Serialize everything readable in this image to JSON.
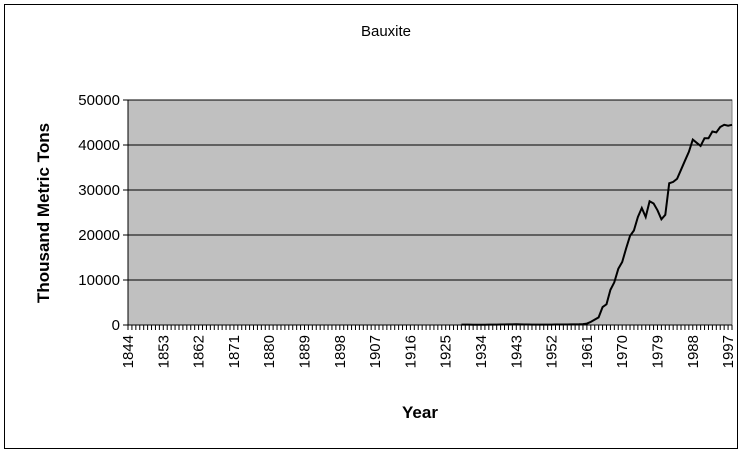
{
  "chart_data": {
    "type": "line",
    "title": "Bauxite",
    "xlabel": "Year",
    "ylabel": "Thousand Metric Tons",
    "xlim": [
      1844,
      1998
    ],
    "ylim": [
      0,
      50000
    ],
    "yticks": [
      "0",
      "10000",
      "20000",
      "30000",
      "40000",
      "50000"
    ],
    "xticks": [
      "1844",
      "1853",
      "1862",
      "1871",
      "1880",
      "1889",
      "1898",
      "1907",
      "1916",
      "1925",
      "1934",
      "1943",
      "1952",
      "1961",
      "1970",
      "1979",
      "1988",
      "1997"
    ],
    "grid": "horizontal",
    "legend": "none",
    "colors": {
      "plot_area": "#c0c0c0",
      "line": "#000000",
      "grid": "#000000"
    },
    "series": [
      {
        "x": [
          1929,
          1930,
          1931,
          1932,
          1933,
          1934,
          1935,
          1936,
          1937,
          1938,
          1939,
          1940,
          1941,
          1942,
          1943,
          1944,
          1945,
          1946,
          1947,
          1948,
          1949,
          1950,
          1951,
          1952,
          1953,
          1954,
          1955,
          1956,
          1957,
          1958,
          1959,
          1960,
          1961,
          1962,
          1963,
          1964,
          1965,
          1966,
          1967,
          1968,
          1969,
          1970,
          1971,
          1972,
          1973,
          1974,
          1975,
          1976,
          1977,
          1978,
          1979,
          1980,
          1981,
          1982,
          1983,
          1984,
          1985,
          1986,
          1987,
          1988,
          1989,
          1990,
          1991,
          1992,
          1993,
          1994,
          1995,
          1996,
          1997,
          1998
        ],
        "values": [
          100,
          100,
          80,
          60,
          50,
          60,
          70,
          80,
          90,
          100,
          110,
          120,
          130,
          140,
          150,
          140,
          120,
          110,
          100,
          100,
          90,
          90,
          100,
          100,
          110,
          110,
          120,
          120,
          130,
          130,
          150,
          200,
          300,
          700,
          1200,
          1700,
          4000,
          4600,
          7800,
          9500,
          12500,
          14000,
          17000,
          19800,
          21000,
          24000,
          26000,
          24000,
          27500,
          27000,
          25500,
          23500,
          24500,
          31500,
          31800,
          32500,
          34500,
          36500,
          38500,
          41200,
          40500,
          39800,
          41500,
          41500,
          43000,
          42800,
          44000,
          44500,
          44300,
          44500
        ]
      }
    ]
  }
}
